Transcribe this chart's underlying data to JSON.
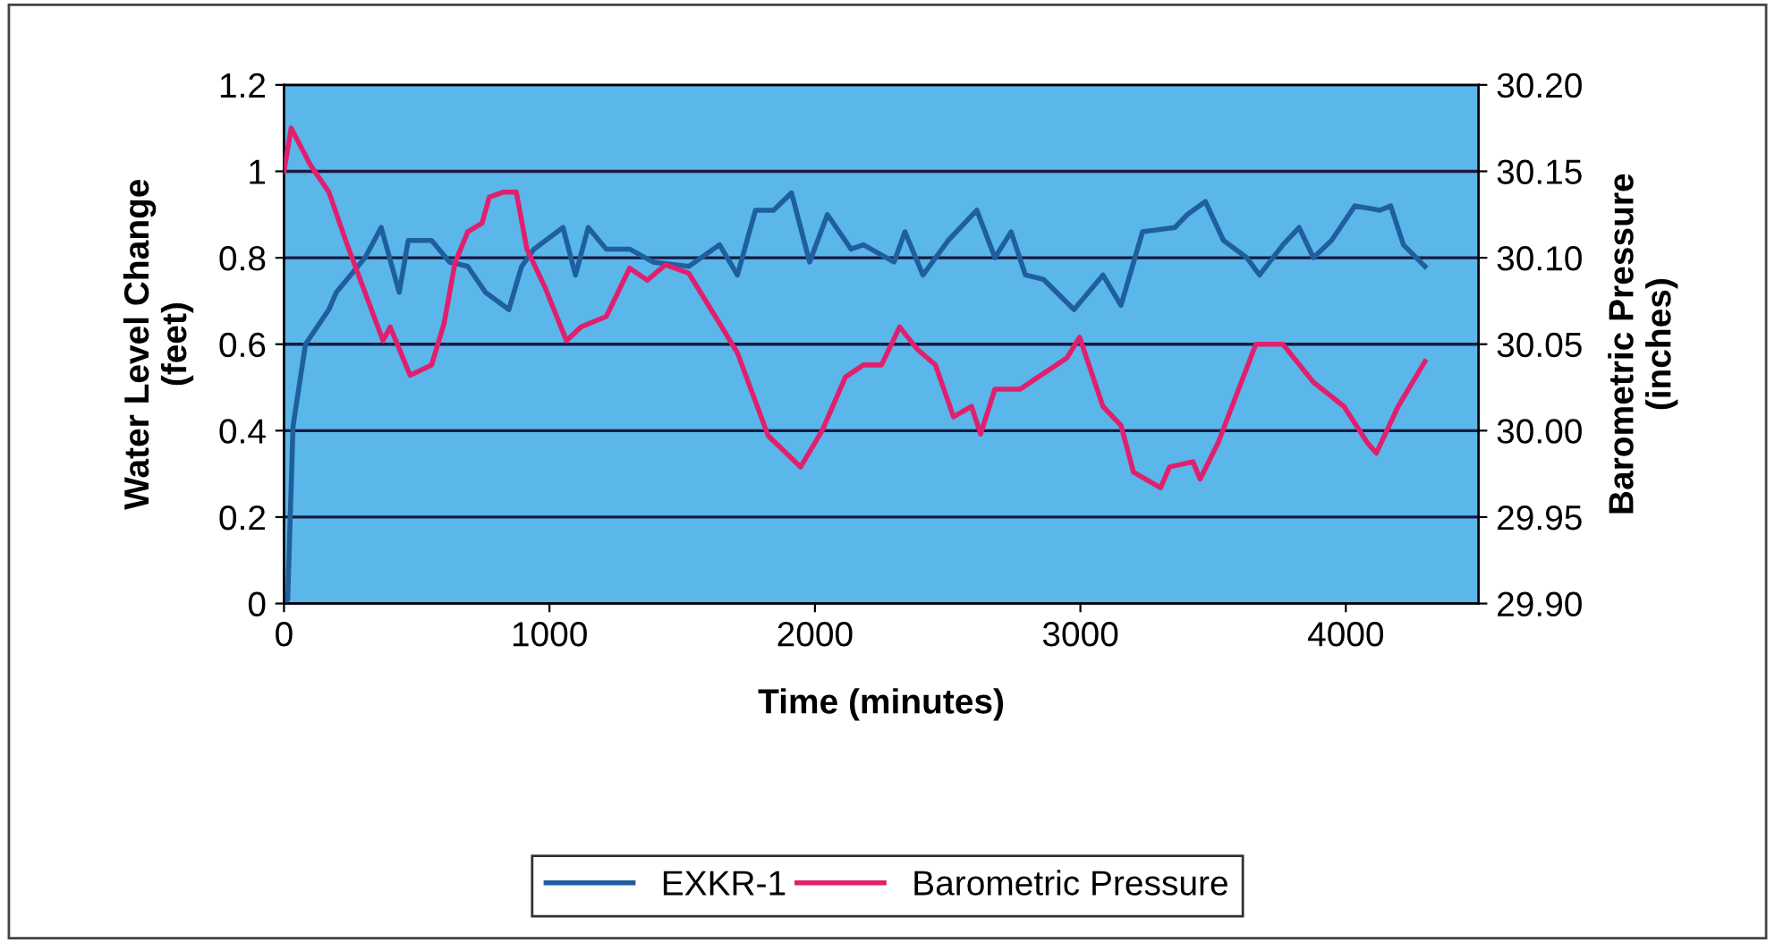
{
  "chart_data": {
    "type": "line",
    "xlabel": "Time (minutes)",
    "ylabel": "Water Level Change\n(feet)",
    "y2label": "Barometric Pressure\n(inches)",
    "xlim": [
      0,
      4500
    ],
    "xticks": [
      0,
      1000,
      2000,
      3000,
      4000
    ],
    "ylim": [
      0,
      1.2
    ],
    "yticks": [
      0,
      0.2,
      0.4,
      0.6,
      0.8,
      1,
      1.2
    ],
    "y2lim": [
      29.9,
      30.2
    ],
    "y2ticks": [
      {
        "value": 29.9,
        "label": "29.90"
      },
      {
        "value": 29.95,
        "label": "29.95"
      },
      {
        "value": 30.0,
        "label": "30.00"
      },
      {
        "value": 30.05,
        "label": "30.05"
      },
      {
        "value": 30.1,
        "label": "30.10"
      },
      {
        "value": 30.15,
        "label": "30.15"
      },
      {
        "value": 30.2,
        "label": "30.20"
      }
    ],
    "grid": "y",
    "legend": "bottom",
    "marker": "none",
    "line_style": "solid",
    "series": [
      {
        "name": "EXKR-1",
        "color": "#1f5f9e",
        "x": [
          0,
          14,
          34,
          81,
          169,
          197,
          251,
          305,
          366,
          434,
          468,
          556,
          624,
          692,
          759,
          847,
          895,
          942,
          1051,
          1098,
          1146,
          1214,
          1302,
          1390,
          1525,
          1641,
          1708,
          1776,
          1844,
          1912,
          1980,
          2047,
          2136,
          2183,
          2298,
          2339,
          2407,
          2502,
          2610,
          2678,
          2739,
          2793,
          2861,
          2976,
          3085,
          3153,
          3234,
          3356,
          3403,
          3471,
          3539,
          3627,
          3675,
          3763,
          3824,
          3878,
          3946,
          4034,
          4129,
          4169,
          4217,
          4298
        ],
        "values": [
          0,
          0.01,
          0.41,
          0.6,
          0.68,
          0.72,
          0.76,
          0.8,
          0.87,
          0.72,
          0.84,
          0.84,
          0.79,
          0.78,
          0.72,
          0.68,
          0.78,
          0.82,
          0.87,
          0.76,
          0.87,
          0.82,
          0.82,
          0.79,
          0.78,
          0.83,
          0.76,
          0.91,
          0.91,
          0.95,
          0.79,
          0.9,
          0.82,
          0.83,
          0.79,
          0.86,
          0.76,
          0.84,
          0.91,
          0.8,
          0.86,
          0.76,
          0.75,
          0.68,
          0.76,
          0.69,
          0.86,
          0.87,
          0.9,
          0.93,
          0.84,
          0.8,
          0.76,
          0.83,
          0.87,
          0.8,
          0.84,
          0.92,
          0.91,
          0.92,
          0.83,
          0.78
        ]
      },
      {
        "name": "Barometric Pressure",
        "color": "#e0206e",
        "axis": "y2",
        "x": [
          0,
          27,
          102,
          169,
          237,
          373,
          400,
          475,
          556,
          603,
          644,
          692,
          746,
          773,
          827,
          875,
          915,
          983,
          1064,
          1119,
          1214,
          1302,
          1369,
          1437,
          1525,
          1641,
          1708,
          1824,
          1946,
          2027,
          2115,
          2183,
          2251,
          2319,
          2386,
          2454,
          2522,
          2590,
          2624,
          2678,
          2773,
          2841,
          2949,
          2997,
          3085,
          3153,
          3200,
          3302,
          3336,
          3424,
          3451,
          3519,
          3661,
          3763,
          3878,
          3993,
          4081,
          4115,
          4197,
          4298
        ],
        "values": [
          30.15,
          30.175,
          30.153,
          30.138,
          30.108,
          30.052,
          30.06,
          30.032,
          30.038,
          30.062,
          30.097,
          30.115,
          30.12,
          30.135,
          30.138,
          30.138,
          30.105,
          30.083,
          30.052,
          30.06,
          30.066,
          30.094,
          30.087,
          30.096,
          30.091,
          30.062,
          30.045,
          29.997,
          29.979,
          30.0,
          30.031,
          30.038,
          30.038,
          30.06,
          30.047,
          30.038,
          30.008,
          30.014,
          29.998,
          30.024,
          30.024,
          30.031,
          30.042,
          30.054,
          30.014,
          30.003,
          29.976,
          29.967,
          29.979,
          29.982,
          29.972,
          29.993,
          30.05,
          30.05,
          30.028,
          30.014,
          29.993,
          29.987,
          30.014,
          30.04
        ]
      }
    ]
  }
}
